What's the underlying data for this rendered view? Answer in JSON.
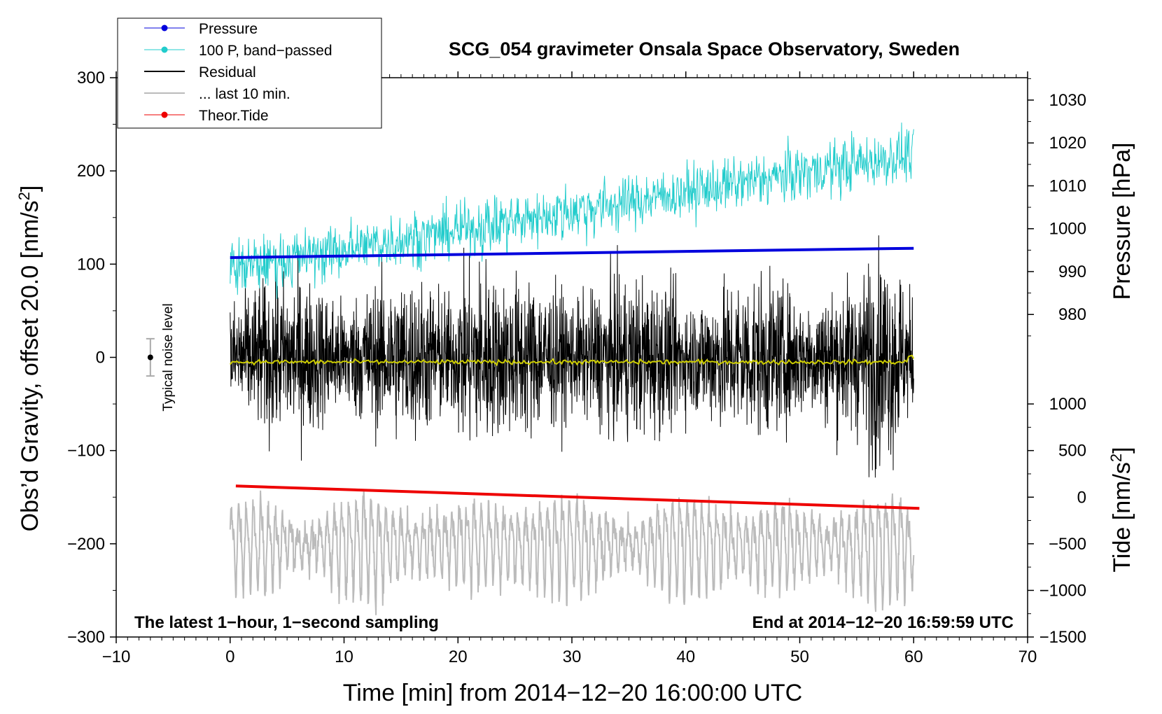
{
  "chart_data": {
    "type": "line",
    "title": "SCG_054 gravimeter Onsala Space Observatory, Sweden",
    "xlabel": "Time [min] from 2014−12−20 16:00:00 UTC",
    "ylabel_left": "Obs’d Gravity, offset 20.0 [nm/s²]",
    "ylabel_right_top": "Pressure [hPa]",
    "ylabel_right_bottom": "Tide [nm/s²]",
    "ylabel_right_bottom_parts": [
      "Tide [nm/s",
      "2",
      "]"
    ],
    "ylabel_left_parts": [
      "Obs’d Gravity, offset 20.0 [nm/s",
      "2",
      "]"
    ],
    "xlim": [
      -10,
      70
    ],
    "ylim": [
      -300,
      300
    ],
    "x_ticks": [
      -10,
      0,
      10,
      20,
      30,
      40,
      50,
      60,
      70
    ],
    "x_tick_labels": [
      "−10",
      "0",
      "10",
      "20",
      "30",
      "40",
      "50",
      "60",
      "70"
    ],
    "y_ticks_left": [
      -300,
      -200,
      -100,
      0,
      100,
      200,
      300
    ],
    "y_tick_labels_left": [
      "−300",
      "−200",
      "−100",
      "0",
      "100",
      "200",
      "300"
    ],
    "pressure_axis": {
      "ticks": [
        980,
        990,
        1000,
        1010,
        1020,
        1030
      ],
      "tick_labels": [
        "980",
        "990",
        "1000",
        "1010",
        "1020",
        "1030"
      ],
      "mapping": {
        "hPa": [
          990,
          1020
        ],
        "gravity": [
          92,
          230
        ]
      }
    },
    "tide_axis": {
      "ticks": [
        -1500,
        -1000,
        -500,
        0,
        500,
        1000
      ],
      "tick_labels": [
        "−1500",
        "−1000",
        "−500",
        "0",
        "500",
        "1000"
      ],
      "mapping": {
        "nm_s2": [
          -1500,
          1000
        ],
        "gravity": [
          -300,
          -50
        ]
      }
    },
    "legend": {
      "position": "top-left",
      "items": [
        {
          "label": "Pressure",
          "color": "#0000dd",
          "marker": true
        },
        {
          "label": "100 P, band−passed",
          "color": "#22cccc",
          "marker": true
        },
        {
          "label": "Residual",
          "color": "#000000",
          "marker": false
        },
        {
          "label": "... last 10 min.",
          "color": "#bbbbbb",
          "marker": false
        },
        {
          "label": "Theor.Tide",
          "color": "#ee0000",
          "marker": true
        }
      ]
    },
    "series": [
      {
        "name": "Pressure",
        "color": "#0000dd",
        "x_range": [
          0,
          60
        ],
        "y_start": 107,
        "y_end": 117,
        "kind": "linear"
      },
      {
        "name": "100 P, band−passed",
        "color": "#22cccc",
        "x_range": [
          0,
          60
        ],
        "y_start": 95,
        "y_end": 218,
        "noise_amplitude": 14,
        "kind": "noisy-trend"
      },
      {
        "name": "Residual",
        "color": "#000000",
        "x_range": [
          0,
          60
        ],
        "center": 0,
        "noise_amplitude": 38,
        "kind": "noise"
      },
      {
        "name": "Residual smoothed",
        "color": "#cccc00",
        "x_range": [
          0,
          60
        ],
        "center": -5,
        "kind": "flat"
      },
      {
        "name": "... last 10 min.",
        "color": "#bbbbbb",
        "x_range": [
          0,
          60
        ],
        "center": -200,
        "amplitude": 45,
        "kind": "oscillation"
      },
      {
        "name": "Theor.Tide",
        "color": "#ee0000",
        "x_range": [
          0.5,
          60.5
        ],
        "y_start": -138,
        "y_end": -162,
        "kind": "linear"
      }
    ],
    "noise_bar": {
      "x": -7,
      "y": 0,
      "half_range": 20,
      "label": "Typical noise level"
    },
    "annotations": {
      "bottom_left": "The latest 1−hour, 1−second sampling",
      "bottom_right": "End at 2014−12−20 16:59:59 UTC"
    }
  }
}
